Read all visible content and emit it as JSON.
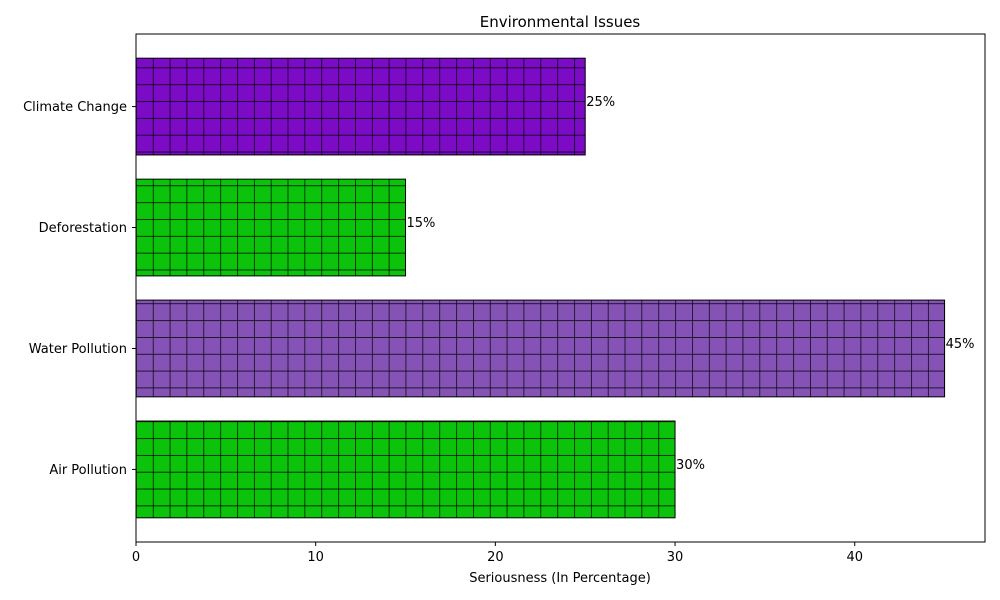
{
  "chart_data": {
    "type": "bar",
    "orientation": "horizontal",
    "title": "Environmental Issues",
    "xlabel": "Seriousness (In Percentage)",
    "ylabel": "",
    "categories": [
      "Air Pollution",
      "Water Pollution",
      "Deforestation",
      "Climate Change"
    ],
    "values": [
      30,
      45,
      15,
      25
    ],
    "data_labels": [
      "30%",
      "45%",
      "15%",
      "25%"
    ],
    "colors": [
      "#0bc30b",
      "#8453b5",
      "#0bc30b",
      "#7c0bc5"
    ],
    "pattern": "grid-hatch",
    "xlim": [
      0,
      47.25
    ],
    "xticks": [
      0,
      10,
      20,
      30,
      40
    ],
    "xtick_labels": [
      "0",
      "10",
      "20",
      "30",
      "40"
    ],
    "grid": false,
    "legend": "none"
  }
}
